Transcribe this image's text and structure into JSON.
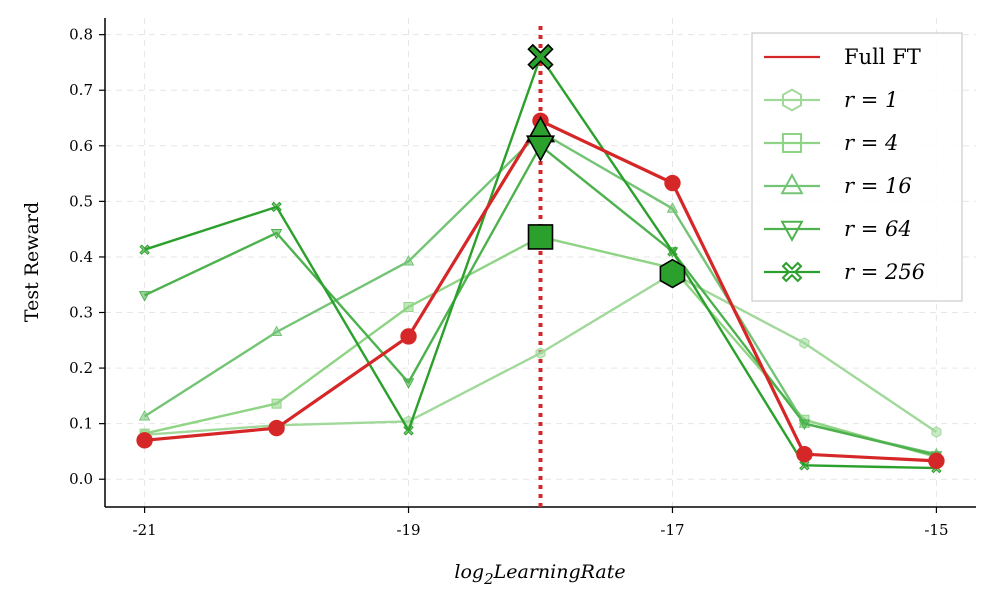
{
  "chart_data": {
    "type": "line",
    "title": "",
    "xlabel": "log",
    "xlabel_sub": "2",
    "xlabel_rest": "LearningRate",
    "ylabel": "Test Reward",
    "x": [
      -21,
      -20,
      -19,
      -18,
      -17,
      -16,
      -15
    ],
    "xticks": [
      "-21",
      "-19",
      "-17",
      "-15"
    ],
    "xlim": [
      -21.3,
      -14.7
    ],
    "yticks": [
      "0.0",
      "0.1",
      "0.2",
      "0.3",
      "0.4",
      "0.5",
      "0.6",
      "0.7",
      "0.8"
    ],
    "ylim": [
      -0.05,
      0.83
    ],
    "grid": true,
    "legend_position": "top-right",
    "best_lr": -18,
    "series": [
      {
        "name": "Full FT",
        "color": "#d62728",
        "marker": "circle",
        "values": [
          0.07,
          0.092,
          0.257,
          0.645,
          0.533,
          0.045,
          0.033
        ]
      },
      {
        "name": "r = 1",
        "color": "#a1d99b",
        "marker": "hexagon",
        "values": [
          0.08,
          0.097,
          0.104,
          0.227,
          0.37,
          0.245,
          0.085
        ]
      },
      {
        "name": "r = 4",
        "color": "#8fd485",
        "marker": "square",
        "values": [
          0.082,
          0.136,
          0.31,
          0.436,
          0.38,
          0.107,
          0.04
        ]
      },
      {
        "name": "r = 16",
        "color": "#74c476",
        "marker": "triangle-up",
        "values": [
          0.113,
          0.265,
          0.392,
          0.625,
          0.487,
          0.1,
          0.045
        ]
      },
      {
        "name": "r = 64",
        "color": "#4db24d",
        "marker": "triangle-down",
        "values": [
          0.331,
          0.443,
          0.174,
          0.6,
          0.41,
          0.1,
          0.043
        ]
      },
      {
        "name": "r = 256",
        "color": "#2ca02c",
        "marker": "x-cross",
        "values": [
          0.413,
          0.49,
          0.088,
          0.76,
          0.41,
          0.025,
          0.02
        ]
      }
    ],
    "highlights": [
      {
        "series": "r = 1",
        "x": -17,
        "y": 0.37,
        "marker": "hexagon"
      },
      {
        "series": "r = 4",
        "x": -18,
        "y": 0.436,
        "marker": "square"
      },
      {
        "series": "r = 16",
        "x": -18,
        "y": 0.625,
        "marker": "triangle-up"
      },
      {
        "series": "r = 64",
        "x": -18,
        "y": 0.6,
        "marker": "triangle-down"
      },
      {
        "series": "r = 256",
        "x": -18,
        "y": 0.76,
        "marker": "x-cross"
      }
    ],
    "highlight_color": "#2ca02c"
  }
}
